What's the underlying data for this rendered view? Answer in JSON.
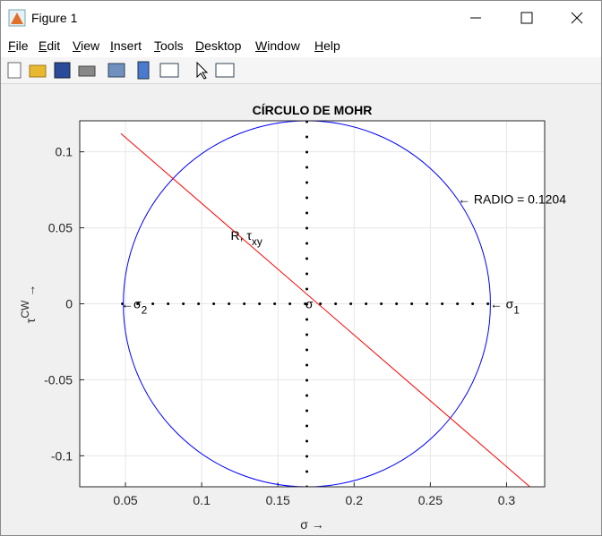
{
  "window": {
    "title": "Figure 1",
    "menu": [
      "File",
      "Edit",
      "View",
      "Insert",
      "Tools",
      "Desktop",
      "Window",
      "Help"
    ]
  },
  "chart_data": {
    "type": "mohr",
    "title": "CÍRCULO DE MOHR",
    "xlabel": "σ →",
    "ylabel": {
      "text": "τ",
      "sup": "CW",
      "arrow": " →"
    },
    "xlim": [
      0.02,
      0.325
    ],
    "ylim": [
      -0.1204,
      0.1204
    ],
    "xticks": [
      0.05,
      0.1,
      0.15,
      0.2,
      0.25,
      0.3
    ],
    "yticks": [
      -0.1,
      -0.05,
      0,
      0.05,
      0.1
    ],
    "grid": true,
    "circle": {
      "center": [
        0.169,
        0
      ],
      "radius": 0.1204,
      "color": "#0000ff"
    },
    "line": {
      "x": [
        0.047,
        0.316
      ],
      "y": [
        0.112,
        -0.121
      ],
      "color": "#ff0000"
    },
    "dotted": [
      {
        "x": [
          0.048,
          0.29
        ],
        "y": [
          0,
          0
        ]
      },
      {
        "x": [
          0.169,
          0.169
        ],
        "y": [
          -0.1204,
          0.1204
        ]
      }
    ],
    "annotations": [
      {
        "text": "← RADIO = 0.1204",
        "x": 0.268,
        "y": 0.069
      },
      {
        "text": "R, τ",
        "sub": "xy",
        "x": 0.119,
        "y": 0.045
      },
      {
        "text": "← σ",
        "sub": "1",
        "x": 0.289,
        "y": 0
      },
      {
        "text": "←σ",
        "sub": "2",
        "x": 0.047,
        "y": 0
      },
      {
        "text": "σ",
        "x": 0.168,
        "y": 0
      }
    ]
  }
}
